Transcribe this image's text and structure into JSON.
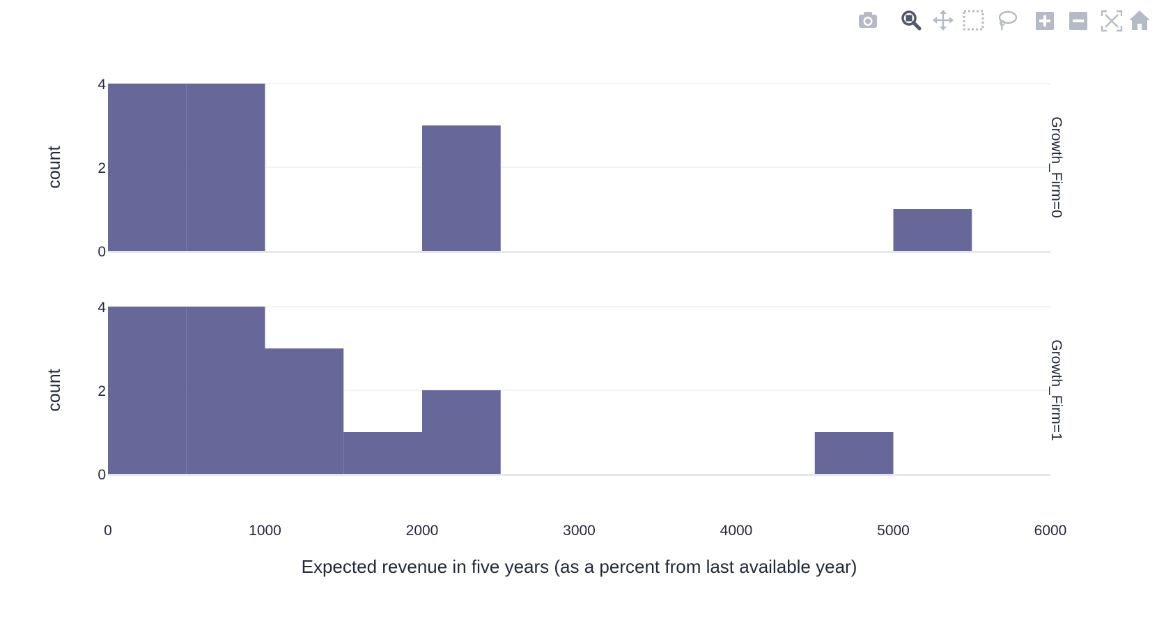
{
  "toolbar": {
    "buttons": [
      {
        "name": "camera-icon",
        "title": "Download plot as a png"
      },
      {
        "name": "zoom-icon",
        "title": "Zoom"
      },
      {
        "name": "pan-icon",
        "title": "Pan"
      },
      {
        "name": "box-select-icon",
        "title": "Box Select"
      },
      {
        "name": "lasso-select-icon",
        "title": "Lasso Select"
      },
      {
        "name": "zoom-in-icon",
        "title": "Zoom in"
      },
      {
        "name": "zoom-out-icon",
        "title": "Zoom out"
      },
      {
        "name": "autoscale-icon",
        "title": "Autoscale"
      },
      {
        "name": "reset-axes-icon",
        "title": "Reset axes"
      }
    ],
    "active": "zoom-icon",
    "icon_color": "#b5bbc5",
    "active_color": "#505767"
  },
  "colors": {
    "bar": "#676899",
    "grid": "#e8ecf3",
    "zero_line": "#e3e8f0",
    "text": "#222a3a"
  },
  "chart_data": {
    "type": "bar",
    "subtype": "faceted-histogram",
    "xlabel": "Expected revenue in five years (as a percent from last available year)",
    "xlim": [
      0,
      6000
    ],
    "x_ticks": [
      0,
      1000,
      2000,
      3000,
      4000,
      5000,
      6000
    ],
    "x_tick_labels": [
      "0",
      "1000",
      "2000",
      "3000",
      "4000",
      "5000",
      "6000"
    ],
    "bin_width": 500,
    "grid": true,
    "facets": [
      {
        "label": "Growth_Firm=0",
        "ylabel": "count",
        "ylim": [
          0,
          4
        ],
        "y_ticks": [
          0,
          2,
          4
        ],
        "bins": [
          {
            "start": 0,
            "end": 500,
            "count": 4
          },
          {
            "start": 500,
            "end": 1000,
            "count": 4
          },
          {
            "start": 2000,
            "end": 2500,
            "count": 3
          },
          {
            "start": 5000,
            "end": 5500,
            "count": 1
          }
        ]
      },
      {
        "label": "Growth_Firm=1",
        "ylabel": "count",
        "ylim": [
          0,
          4
        ],
        "y_ticks": [
          0,
          2,
          4
        ],
        "bins": [
          {
            "start": 0,
            "end": 500,
            "count": 4
          },
          {
            "start": 500,
            "end": 1000,
            "count": 4
          },
          {
            "start": 1000,
            "end": 1500,
            "count": 3
          },
          {
            "start": 1500,
            "end": 2000,
            "count": 1
          },
          {
            "start": 2000,
            "end": 2500,
            "count": 2
          },
          {
            "start": 4500,
            "end": 5000,
            "count": 1
          }
        ]
      }
    ]
  }
}
